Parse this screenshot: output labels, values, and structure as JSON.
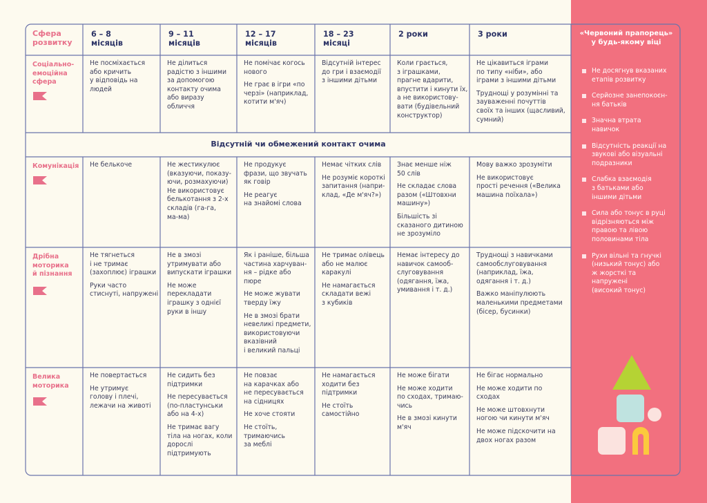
{
  "header": {
    "area": "Сфера\nрозвитку",
    "ages": [
      "6 – 8\nмісяців",
      "9 – 11\nмісяців",
      "12 – 17\nмісяців",
      "18 – 23\nмісяці",
      "2 роки",
      "3 роки"
    ],
    "red_flag": "«Червоний прапорець»\nу будь-якому віці"
  },
  "banner": "Відсутній чи обмежений контакт очима",
  "rows": [
    {
      "area": "Соціально-\nемоційна\nсфера",
      "cells": [
        [
          "Не посміхається\nабо кричить\nу відповідь на\nлюдей"
        ],
        [
          "Не ділиться\nрадістю з іншими\nза допомогою\nконтакту очима\nабо виразу\nобличчя"
        ],
        [
          "Не помічає когось\nнового",
          "Не грає в ігри «по\nчерзі» (наприклад,\nкотити м'яч)"
        ],
        [
          "Відсутній інтерес\nдо гри і взаємодії\nз іншими дітьми"
        ],
        [
          "Коли грається,\nз іграшками,\nпрагне вдарити,\nвпустити і кинути їх,\nа не використову-\nвати (будівельний\nконструктор)"
        ],
        [
          "Не цікавиться іграми\nпо типу «ніби», або\nіграми з іншими дітьми",
          "Труднощі у розумінні та\nзауваженні почуттів\nсвоїх та інших (щасливий,\nсумний)"
        ]
      ]
    },
    {
      "area": "Комунікація",
      "cells": [
        [
          "Не белькоче"
        ],
        [
          "Не жестикулює\n(вказуючи, показу-\nючи, розмахуючи)\nНе використовує\nбелькотання з 2-х\nскладів (га-га,\nма-ма)"
        ],
        [
          "Не продукує\nфрази, що звучать\nяк говір",
          "Не реагує\nна знайомі слова"
        ],
        [
          "Немає чітких слів",
          "Не розуміє короткі\nзапитання (напри-\nклад, «Де м'яч?»)"
        ],
        [
          "Знає менше ніж\n50 слів",
          "Не складає слова\nразом («Штовхни\nмашину»)",
          "Більшість зі\nсказаного дитиною\nне зрозуміло"
        ],
        [
          "Мову важко зрозуміти",
          "Не використовує\nпрості речення («Велика\nмашина поїхала»)"
        ]
      ]
    },
    {
      "area": "Дрібна\nмоторика\nй пізнання",
      "cells": [
        [
          "Не тягнеться\nі не тримає\n(захоплює) іграшки",
          "Руки часто\nстиснуті, напружені"
        ],
        [
          "Не в змозі\nутримувати або\nвипускати іграшки",
          "Не може\nперекладати\nіграшку з однієї\nруки в іншу"
        ],
        [
          "Як і раніше, більша\nчастина харчуван-\nня – рідке або\nпюре",
          "Не може жувати\nтверду їжу",
          "Не в змозі брати\nневеликі предмети,\nвикористовуючи\nвказівний\nі великий пальці"
        ],
        [
          "Не тримає олівець\nабо не малює\nкаракулі",
          "Не намагається\nскладати вежі\nз кубиків"
        ],
        [
          "Немає інтересу до\nнавичок самооб-\nслуговування\n(одягання, їжа,\nумивання і т. д.)"
        ],
        [
          "Труднощі з навичками\nсамообслуговування\n(наприклад, їжа,\nодягання і т. д.)",
          "Важко маніпулюють\nмаленькими предметами\n(бісер, бусинки)"
        ]
      ]
    },
    {
      "area": "Велика\nмоторика",
      "cells": [
        [
          "Не повертається",
          "Не утримує\nголову і плечі,\nлежачи на животі"
        ],
        [
          "Не сидить без\nпідтримки",
          "Не пересувається\n(по-пластунськи\nабо на 4-х)",
          "Не тримає вагу\nтіла на ногах, коли\nдорослі\nпідтримують"
        ],
        [
          "Не повзає\nна карачках або\nне пересувається\nна сідницях",
          "Не хоче стояти",
          "Не стоїть,\nтримаючись\nза меблі"
        ],
        [
          "Не намагається\nходити без\nпідтримки",
          "Не стоїть\nсамостійно"
        ],
        [
          "Не може бігати",
          "Не може ходити\nпо сходах, тримаю-\nчись",
          "Не в змозі кинути\nм'яч"
        ],
        [
          "Не бігає нормально",
          "Не може ходити по\nсходах",
          "Не може штовхнути\nногою чи кинути м'яч",
          "Не може підскочити на\nдвох ногах разом"
        ]
      ]
    }
  ],
  "red_flags": [
    "Не досягнув вказаних\nетапів розвитку",
    "Серйозне занепокоєн-\nня батьків",
    "Значна втрата\nнавичок",
    "Відсутність реакції на\nзвукові або візуальні\nподразники",
    "Слабка взаємодія\nз батьками або\nіншими дітьми",
    "Сила або тонус в руці\nвідрізняються між\nправою та лівою\nполовинами тіла",
    "Рухи вільні та гнучкі\n(низький тонус) або\nж жорсткі та\nнапружені\n(високий тонус)"
  ]
}
